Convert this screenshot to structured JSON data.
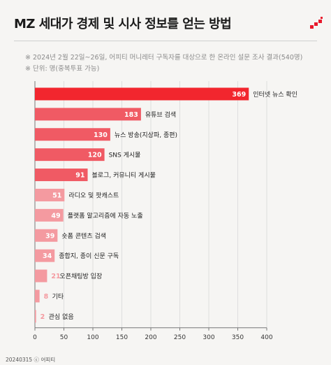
{
  "header": {
    "title": "MZ 세대가 경제 및 시사 정보를 얻는 방법",
    "note_survey": "※ 2024년 2월 22일~26일, 어피티 머니레터 구독자를 대상으로 한 온라인 설문 조사 결과(540명)",
    "note_unit": "※ 단위: 명(중복투표 가능)"
  },
  "footer": {
    "text": "20240315 ⓒ 어피티"
  },
  "colors": {
    "accent": "#f2262e",
    "brand": "#e8192c"
  },
  "chart_data": {
    "type": "bar",
    "orientation": "horizontal",
    "categories": [
      "인터넷 뉴스 확인",
      "유튜브 검색",
      "뉴스 방송(지상파, 종편)",
      "SNS 게시물",
      "블로그, 커뮤니티 게시물",
      "라디오 및 팟캐스트",
      "플랫폼 알고리즘에 자동 노출",
      "숏폼 콘텐츠 검색",
      "종합지, 종이 신문 구독",
      "오픈채팅방 입장",
      "기타",
      "관심 없음"
    ],
    "values": [
      369,
      183,
      130,
      120,
      91,
      51,
      49,
      39,
      34,
      21,
      8,
      2
    ],
    "value_labels": [
      "369",
      "183",
      "130",
      "120",
      "91",
      "51",
      "49",
      "39",
      "34",
      "21",
      "8",
      "2"
    ],
    "colors": [
      "#f2262e",
      "#f05a64",
      "#f05a64",
      "#f05a64",
      "#f05a64",
      "#f49aa0",
      "#f49aa0",
      "#f49aa0",
      "#f49aa0",
      "#f49aa0",
      "#f49aa0",
      "#f49aa0"
    ],
    "xlim": [
      0,
      400
    ],
    "xticks": [
      "0",
      "50",
      "100",
      "150",
      "200",
      "250",
      "300",
      "350",
      "400"
    ],
    "title": "",
    "xlabel": "",
    "ylabel": "",
    "grid": true
  }
}
